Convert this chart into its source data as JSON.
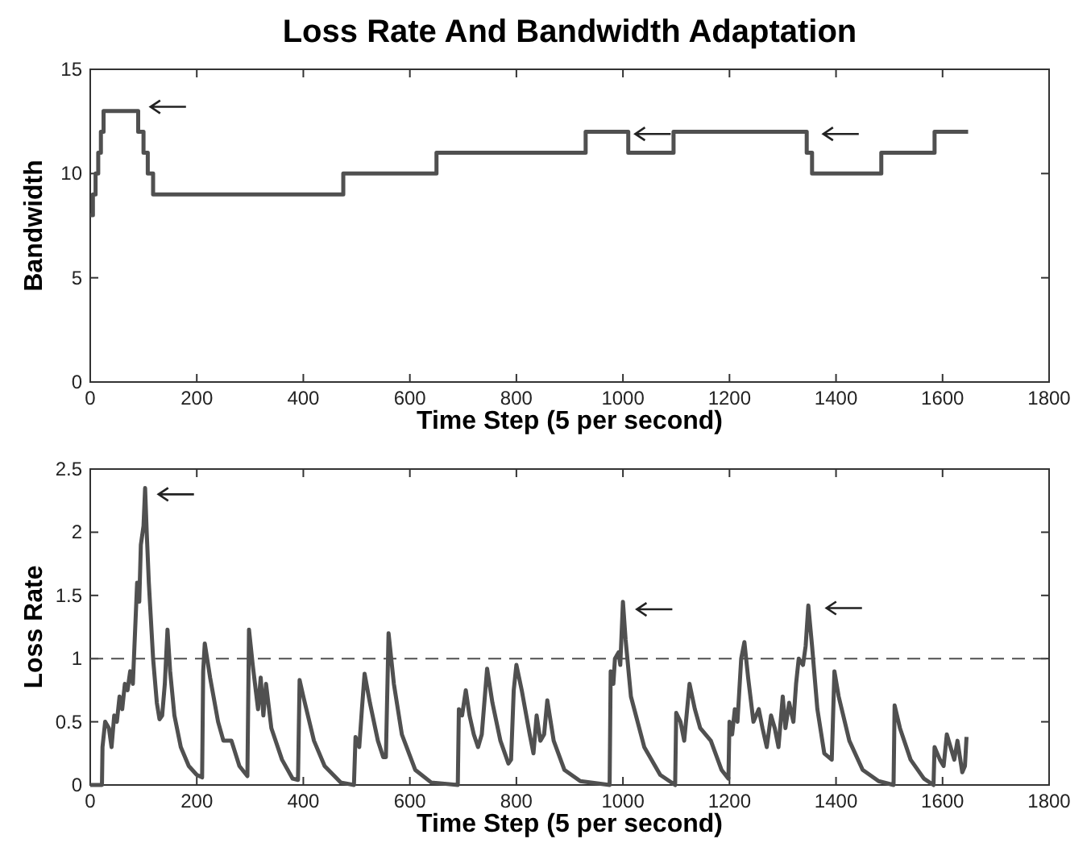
{
  "chart_data": [
    {
      "type": "step",
      "title": "Loss Rate And Bandwidth Adaptation",
      "xlabel": "Time Step (5 per second)",
      "ylabel": "Bandwidth",
      "xlim": [
        0,
        1800
      ],
      "xticks": [
        0,
        200,
        400,
        600,
        800,
        1000,
        1200,
        1400,
        1600,
        1800
      ],
      "ylim": [
        0,
        15
      ],
      "yticks": [
        0,
        5,
        10,
        15
      ],
      "grid": false,
      "series": [
        {
          "color": "#505050",
          "x": [
            0,
            5,
            10,
            15,
            20,
            25,
            90,
            100,
            108,
            118,
            475,
            650,
            930,
            1010,
            1095,
            1345,
            1355,
            1485,
            1585,
            1648
          ],
          "values": [
            8,
            9,
            10,
            11,
            12,
            13,
            12,
            11,
            10,
            9,
            10,
            11,
            12,
            11,
            12,
            11,
            10,
            11,
            12,
            12
          ]
        }
      ]
    },
    {
      "type": "line",
      "xlabel": "Time Step (5 per second)",
      "ylabel": "Loss Rate",
      "xlim": [
        0,
        1800
      ],
      "xticks": [
        0,
        200,
        400,
        600,
        800,
        1000,
        1200,
        1400,
        1600,
        1800
      ],
      "ylim": [
        0,
        2.5
      ],
      "yticks": [
        0,
        0.5,
        1,
        1.5,
        2,
        2.5
      ],
      "grid": false,
      "ref_lines": [
        {
          "axis": "y",
          "value": 1,
          "line_style": "dashed",
          "color": "#505050"
        }
      ],
      "series": [
        {
          "color": "#505050",
          "x": [
            0,
            22,
            23,
            28,
            35,
            40,
            45,
            50,
            55,
            60,
            65,
            70,
            75,
            80,
            85,
            88,
            92,
            95,
            100,
            103,
            106,
            110,
            118,
            125,
            130,
            135,
            140,
            145,
            150,
            158,
            170,
            185,
            200,
            210,
            212,
            215,
            225,
            240,
            250,
            265,
            280,
            295,
            298,
            305,
            315,
            320,
            325,
            330,
            340,
            360,
            380,
            390,
            393,
            400,
            420,
            440,
            470,
            495,
            498,
            505,
            510,
            515,
            525,
            540,
            550,
            555,
            560,
            570,
            585,
            610,
            640,
            690,
            692,
            698,
            705,
            712,
            720,
            728,
            735,
            745,
            755,
            770,
            785,
            790,
            795,
            800,
            810,
            825,
            832,
            838,
            845,
            852,
            858,
            870,
            890,
            920,
            975,
            977,
            982,
            985,
            992,
            995,
            1000,
            1005,
            1015,
            1040,
            1070,
            1098,
            1100,
            1108,
            1115,
            1125,
            1135,
            1145,
            1165,
            1185,
            1198,
            1200,
            1205,
            1210,
            1215,
            1222,
            1228,
            1235,
            1245,
            1255,
            1262,
            1270,
            1278,
            1285,
            1292,
            1300,
            1305,
            1312,
            1320,
            1325,
            1330,
            1338,
            1343,
            1348,
            1355,
            1365,
            1378,
            1392,
            1397,
            1405,
            1425,
            1450,
            1480,
            1508,
            1510,
            1520,
            1540,
            1565,
            1583,
            1585,
            1595,
            1602,
            1608,
            1615,
            1622,
            1628,
            1637,
            1642,
            1645
          ],
          "values": [
            0,
            0,
            0.3,
            0.5,
            0.45,
            0.3,
            0.55,
            0.5,
            0.7,
            0.6,
            0.8,
            0.75,
            0.9,
            0.8,
            1.3,
            1.6,
            1.45,
            1.9,
            2.05,
            2.35,
            2.0,
            1.6,
            1.0,
            0.65,
            0.52,
            0.55,
            0.8,
            1.23,
            0.9,
            0.55,
            0.3,
            0.15,
            0.08,
            0.06,
            0.9,
            1.12,
            0.85,
            0.5,
            0.35,
            0.35,
            0.15,
            0.07,
            1.23,
            0.95,
            0.6,
            0.85,
            0.55,
            0.8,
            0.45,
            0.2,
            0.05,
            0.04,
            0.83,
            0.7,
            0.35,
            0.15,
            0.02,
            0,
            0.38,
            0.3,
            0.6,
            0.88,
            0.65,
            0.35,
            0.22,
            0.22,
            1.2,
            0.8,
            0.4,
            0.12,
            0.02,
            0,
            0.6,
            0.55,
            0.75,
            0.55,
            0.4,
            0.3,
            0.4,
            0.92,
            0.65,
            0.35,
            0.17,
            0.2,
            0.75,
            0.95,
            0.75,
            0.4,
            0.25,
            0.55,
            0.35,
            0.4,
            0.67,
            0.35,
            0.12,
            0.03,
            0,
            0.9,
            0.8,
            1.0,
            1.05,
            0.95,
            1.45,
            1.15,
            0.7,
            0.3,
            0.08,
            0,
            0.57,
            0.5,
            0.35,
            0.8,
            0.6,
            0.45,
            0.35,
            0.12,
            0.05,
            0.5,
            0.4,
            0.6,
            0.5,
            1.0,
            1.13,
            0.85,
            0.5,
            0.6,
            0.45,
            0.3,
            0.55,
            0.45,
            0.3,
            0.7,
            0.45,
            0.65,
            0.5,
            0.8,
            1.0,
            0.95,
            1.1,
            1.42,
            1.1,
            0.6,
            0.25,
            0.2,
            0.9,
            0.7,
            0.35,
            0.12,
            0.03,
            0,
            0.63,
            0.45,
            0.2,
            0.05,
            0,
            0.3,
            0.2,
            0.15,
            0.4,
            0.3,
            0.2,
            0.35,
            0.1,
            0.15,
            0.38
          ]
        }
      ]
    }
  ]
}
